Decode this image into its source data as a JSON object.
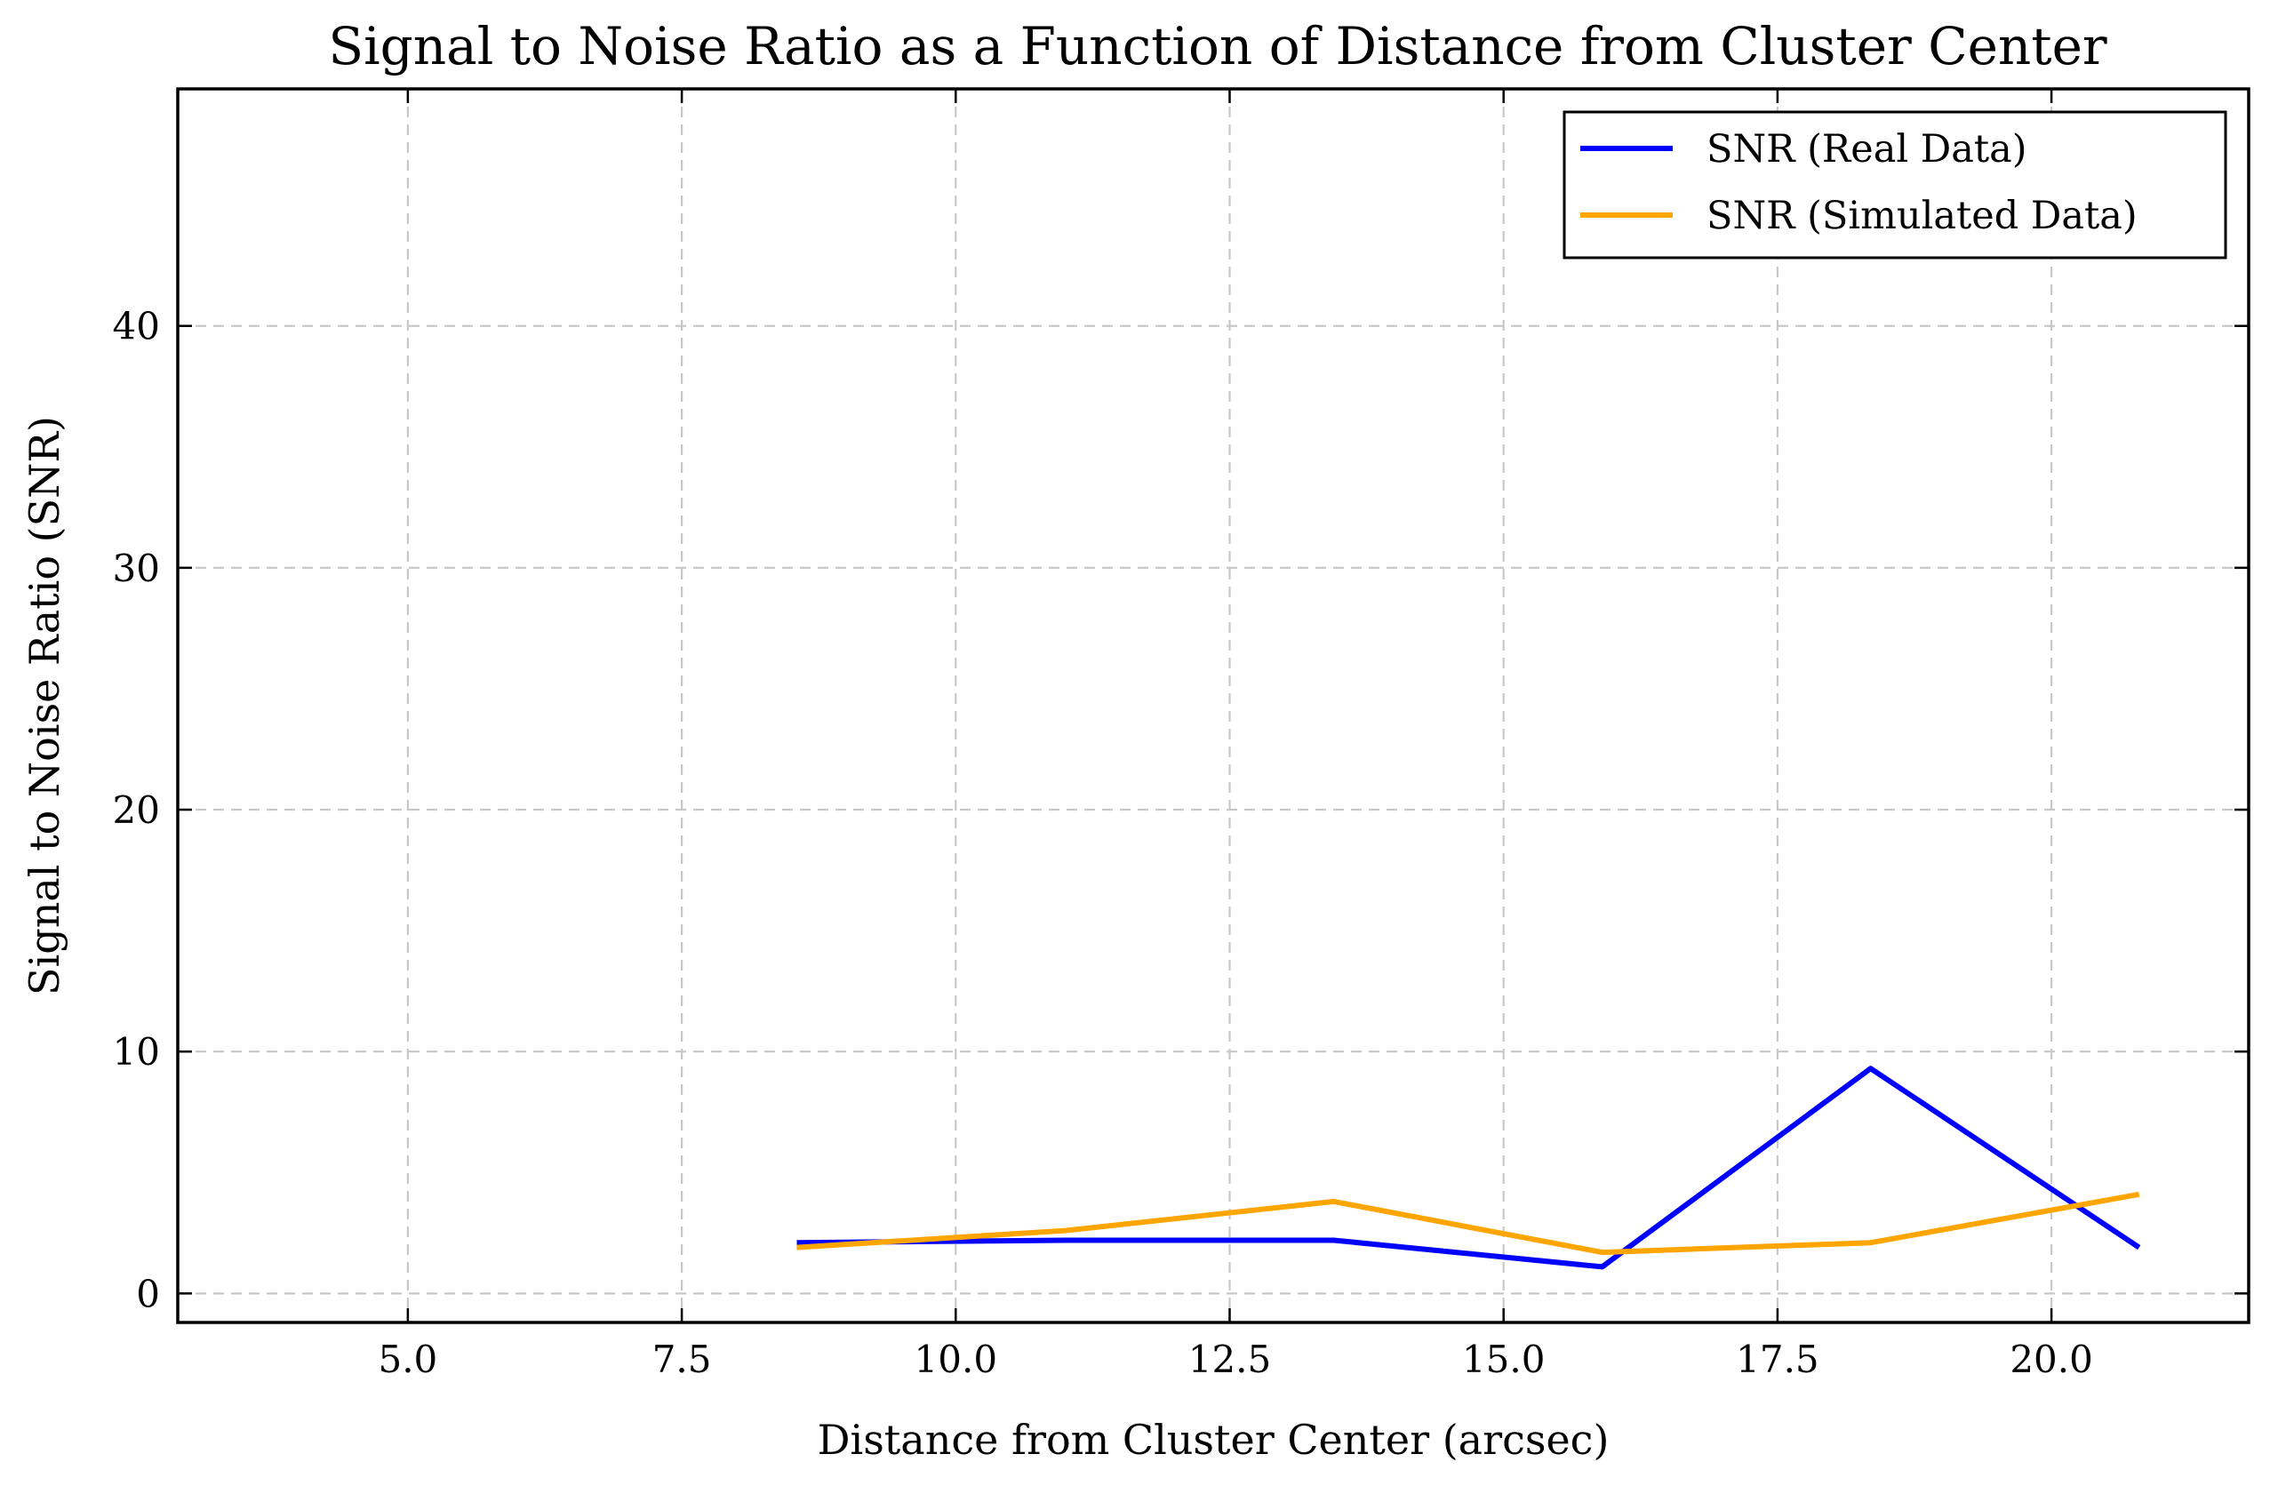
{
  "chart_data": {
    "type": "line",
    "title": "Signal to Noise Ratio as a Function of Distance from Cluster Center",
    "xlabel": "Distance from Cluster Center (arcsec)",
    "ylabel": "Signal to Noise Ratio (SNR)",
    "xlim": [
      2.9,
      21.8
    ],
    "ylim": [
      -1.2,
      49.8
    ],
    "xticks": [
      5.0,
      7.5,
      10.0,
      12.5,
      15.0,
      17.5,
      20.0
    ],
    "xtick_labels": [
      "5.0",
      "7.5",
      "10.0",
      "12.5",
      "15.0",
      "17.5",
      "20.0"
    ],
    "yticks": [
      0,
      10,
      20,
      30,
      40
    ],
    "ytick_labels": [
      "0",
      "10",
      "20",
      "30",
      "40"
    ],
    "grid": true,
    "legend_position": "top-right",
    "series": [
      {
        "name": "SNR (Real Data)",
        "color": "#0000ff",
        "x": [
          8.55,
          11.0,
          13.45,
          15.9,
          18.35,
          20.8
        ],
        "y": [
          2.1,
          2.2,
          2.2,
          1.1,
          9.3,
          1.9
        ]
      },
      {
        "name": "SNR (Simulated Data)",
        "color": "#ffa500",
        "x": [
          8.55,
          11.0,
          13.45,
          15.9,
          18.35,
          20.8
        ],
        "y": [
          1.9,
          2.6,
          3.8,
          1.7,
          2.1,
          4.1
        ]
      }
    ]
  }
}
